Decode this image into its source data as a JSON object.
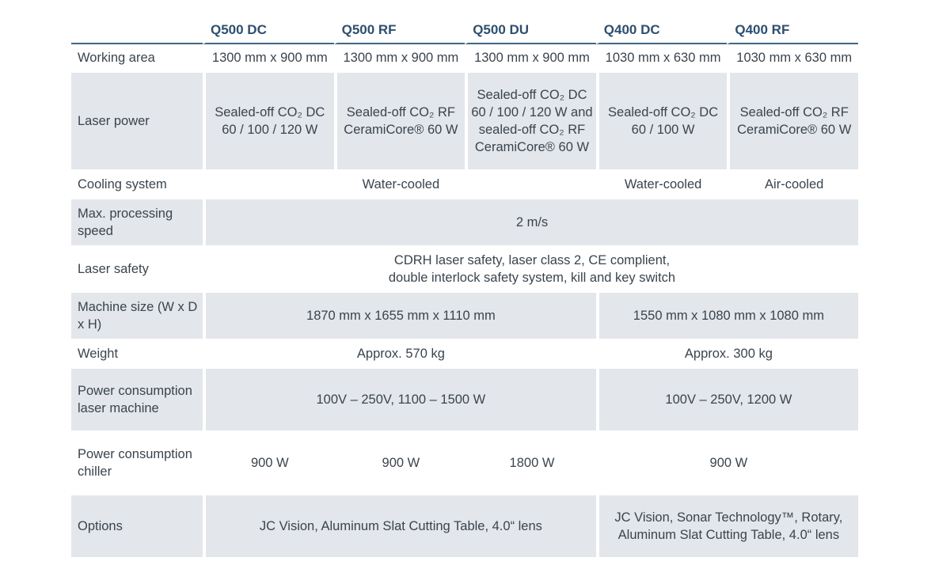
{
  "models": [
    "Q500 DC",
    "Q500 RF",
    "Q500 DU",
    "Q400 DC",
    "Q400 RF"
  ],
  "rows": {
    "working_area": {
      "label": "Working area",
      "values": [
        "1300 mm x 900 mm",
        "1300 mm x 900 mm",
        "1300 mm x 900 mm",
        "1030 mm x 630 mm",
        "1030 mm x 630 mm"
      ]
    },
    "laser_power": {
      "label": "Laser power",
      "values": [
        "Sealed-off CO₂ DC 60 / 100 / 120 W",
        "Sealed-off CO₂ RF CeramiCore® 60 W",
        "Sealed-off CO₂ DC 60 / 100 / 120 W and sealed-off CO₂ RF CeramiCore® 60 W",
        "Sealed-off CO₂ DC 60 / 100 W",
        "Sealed-off CO₂ RF CeramiCore® 60 W"
      ]
    },
    "cooling": {
      "label": "Cooling system",
      "values": [
        "Water-cooled",
        "Water-cooled",
        "Air-cooled"
      ]
    },
    "speed": {
      "label": "Max. processing speed",
      "value": "2 m/s"
    },
    "safety": {
      "label": "Laser safety",
      "line1": "CDRH laser safety, laser class 2, CE complient,",
      "line2": "double interlock safety system, kill and key switch"
    },
    "machine_size": {
      "label": "Machine size (W x D x H)",
      "values": [
        "1870 mm x 1655 mm x 1110 mm",
        "1550 mm x 1080 mm x 1080 mm"
      ]
    },
    "weight": {
      "label": "Weight",
      "values": [
        "Approx. 570 kg",
        "Approx. 300 kg"
      ]
    },
    "power_machine": {
      "label": "Power consumption laser machine",
      "values": [
        "100V – 250V, 1100 – 1500 W",
        "100V – 250V, 1200 W"
      ]
    },
    "power_chiller": {
      "label": "Power consumption chiller",
      "values": [
        "900 W",
        "900 W",
        "1800 W",
        "900 W"
      ]
    },
    "options": {
      "label": "Options",
      "values": [
        "JC Vision, Aluminum Slat Cutting Table, 4.0“ lens",
        "JC Vision, Sonar Technology™, Rotary, Aluminum Slat Cutting Table, 4.0“ lens"
      ]
    }
  }
}
